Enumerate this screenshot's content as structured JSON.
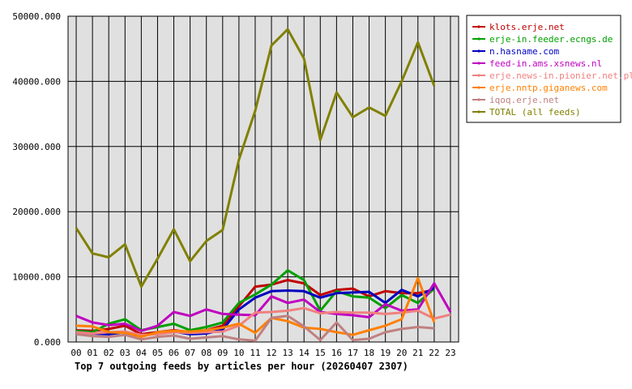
{
  "chart_data": {
    "type": "line",
    "title": "Top 7 outgoing feeds by articles per hour (20260407 2307)",
    "xlabel": "",
    "ylabel": "",
    "categories": [
      "00",
      "01",
      "02",
      "03",
      "04",
      "05",
      "06",
      "07",
      "08",
      "09",
      "10",
      "11",
      "12",
      "13",
      "14",
      "15",
      "16",
      "17",
      "18",
      "19",
      "20",
      "21",
      "22",
      "23"
    ],
    "ylim": [
      0,
      50000
    ],
    "yticks": [
      "0.000",
      "10000.000",
      "20000.000",
      "30000.000",
      "40000.000",
      "50000.000"
    ],
    "grid": true,
    "legend_position": "right",
    "colors": {
      "plot_background": "#e0e0e0",
      "grid": "#000000"
    },
    "series": [
      {
        "name": "klots.erje.net",
        "color": "#c00000",
        "values": [
          1800,
          1700,
          2000,
          2500,
          1200,
          1500,
          1800,
          1500,
          1800,
          2500,
          5500,
          8500,
          8800,
          9500,
          9000,
          7200,
          8000,
          8200,
          7000,
          7800,
          7500,
          7500,
          8000,
          null
        ]
      },
      {
        "name": "erje-in.feeder.ecngs.de",
        "color": "#00a000",
        "values": [
          1700,
          1500,
          2800,
          3500,
          1800,
          2300,
          2800,
          1800,
          2300,
          3000,
          6000,
          7300,
          8800,
          11000,
          9500,
          4800,
          7800,
          7000,
          6800,
          5200,
          7200,
          6000,
          8200,
          null
        ]
      },
      {
        "name": "n.hasname.com",
        "color": "#0000c0",
        "values": [
          1500,
          1300,
          1200,
          1500,
          1000,
          1300,
          1600,
          1200,
          1300,
          1900,
          5000,
          6800,
          7800,
          7900,
          7800,
          6800,
          7500,
          7600,
          7700,
          6000,
          8000,
          7000,
          8300,
          null
        ]
      },
      {
        "name": "feed-in.ams.xsnews.nl",
        "color": "#c000c0",
        "values": [
          4000,
          3000,
          2600,
          2800,
          1700,
          2500,
          4600,
          4000,
          5000,
          4300,
          4200,
          4100,
          7000,
          6000,
          6500,
          4600,
          4300,
          4100,
          3800,
          5800,
          4800,
          5000,
          9000,
          4600
        ]
      },
      {
        "name": "erje.news-in.pionier.net.pl",
        "color": "#f08080",
        "values": [
          1500,
          1300,
          1500,
          1600,
          1100,
          1200,
          1500,
          1400,
          1500,
          1600,
          2500,
          4500,
          4600,
          4800,
          5200,
          4400,
          4600,
          4500,
          4500,
          4300,
          4500,
          4800,
          3600,
          4200
        ]
      },
      {
        "name": "erje.nntp.giganews.com",
        "color": "#ff8000",
        "values": [
          2500,
          2400,
          1500,
          1400,
          800,
          1500,
          1700,
          1600,
          1800,
          2200,
          2800,
          1400,
          3700,
          3200,
          2200,
          2000,
          1500,
          1100,
          1800,
          2500,
          3500,
          9800,
          3000,
          null
        ]
      },
      {
        "name": "iqoq.erje.net",
        "color": "#c08080",
        "values": [
          1200,
          900,
          800,
          1100,
          400,
          800,
          1000,
          500,
          700,
          900,
          400,
          200,
          3700,
          4000,
          2400,
          300,
          3000,
          300,
          500,
          1500,
          2000,
          2300,
          2100,
          null
        ]
      },
      {
        "name": "TOTAL (all feeds)",
        "color": "#808000",
        "values": [
          17500,
          13600,
          13000,
          15000,
          8500,
          12800,
          17300,
          12400,
          15500,
          17200,
          28000,
          35500,
          45500,
          48000,
          43500,
          31000,
          38300,
          34500,
          36000,
          34700,
          40000,
          46000,
          39300,
          null
        ]
      }
    ]
  }
}
